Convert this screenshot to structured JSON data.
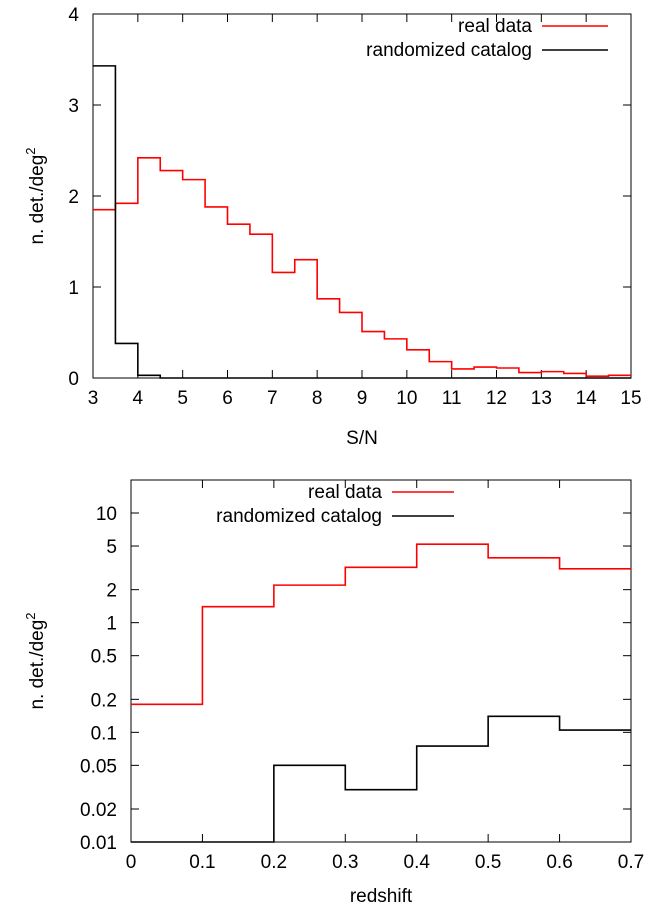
{
  "chart_data": [
    {
      "type": "histogram",
      "xlabel": "S/N",
      "ylabel": "n. det./deg",
      "ylabel_sup": "2",
      "xlim": [
        3,
        15
      ],
      "ylim": [
        0,
        4
      ],
      "xticks": [
        3,
        4,
        5,
        6,
        7,
        8,
        9,
        10,
        11,
        12,
        13,
        14,
        15
      ],
      "yticks": [
        0,
        1,
        2,
        3,
        4
      ],
      "grid": false,
      "legend_position": "top-right",
      "bin_edges": [
        3,
        3.5,
        4,
        4.5,
        5,
        5.5,
        6,
        6.5,
        7,
        7.5,
        8,
        8.5,
        9,
        9.5,
        10,
        10.5,
        11,
        11.5,
        12,
        12.5,
        13,
        13.5,
        14,
        14.5,
        15
      ],
      "series": [
        {
          "name": "real data",
          "color": "#ff0000",
          "values": [
            1.85,
            1.92,
            2.42,
            2.28,
            2.18,
            1.88,
            1.69,
            1.58,
            1.16,
            1.3,
            0.87,
            0.72,
            0.51,
            0.43,
            0.31,
            0.18,
            0.1,
            0.12,
            0.11,
            0.06,
            0.07,
            0.05,
            0.02,
            0.03
          ]
        },
        {
          "name": "randomized catalog",
          "color": "#000000",
          "values": [
            3.43,
            0.38,
            0.03,
            0,
            0,
            0,
            0,
            0,
            0,
            0,
            0,
            0,
            0,
            0,
            0,
            0,
            0,
            0,
            0,
            0,
            0,
            0,
            0,
            0
          ]
        }
      ]
    },
    {
      "type": "histogram",
      "xlabel": "redshift",
      "ylabel": "n. det./deg",
      "ylabel_sup": "2",
      "yscale": "log",
      "xlim": [
        0,
        0.7
      ],
      "ylim": [
        0.01,
        20
      ],
      "xticks": [
        0,
        0.1,
        0.2,
        0.3,
        0.4,
        0.5,
        0.6,
        0.7
      ],
      "yticks": [
        0.01,
        0.02,
        0.05,
        0.1,
        0.2,
        0.5,
        1,
        2,
        5,
        10
      ],
      "grid": false,
      "legend_position": "top-right",
      "bin_edges": [
        0,
        0.1,
        0.2,
        0.3,
        0.4,
        0.5,
        0.6,
        0.7
      ],
      "series": [
        {
          "name": "real data",
          "color": "#ff0000",
          "values": [
            0.18,
            1.4,
            2.2,
            3.2,
            5.2,
            3.9,
            3.1
          ]
        },
        {
          "name": "randomized catalog",
          "color": "#000000",
          "values": [
            0.01,
            0.01,
            0.05,
            0.03,
            0.075,
            0.14,
            0.105
          ]
        }
      ]
    }
  ]
}
